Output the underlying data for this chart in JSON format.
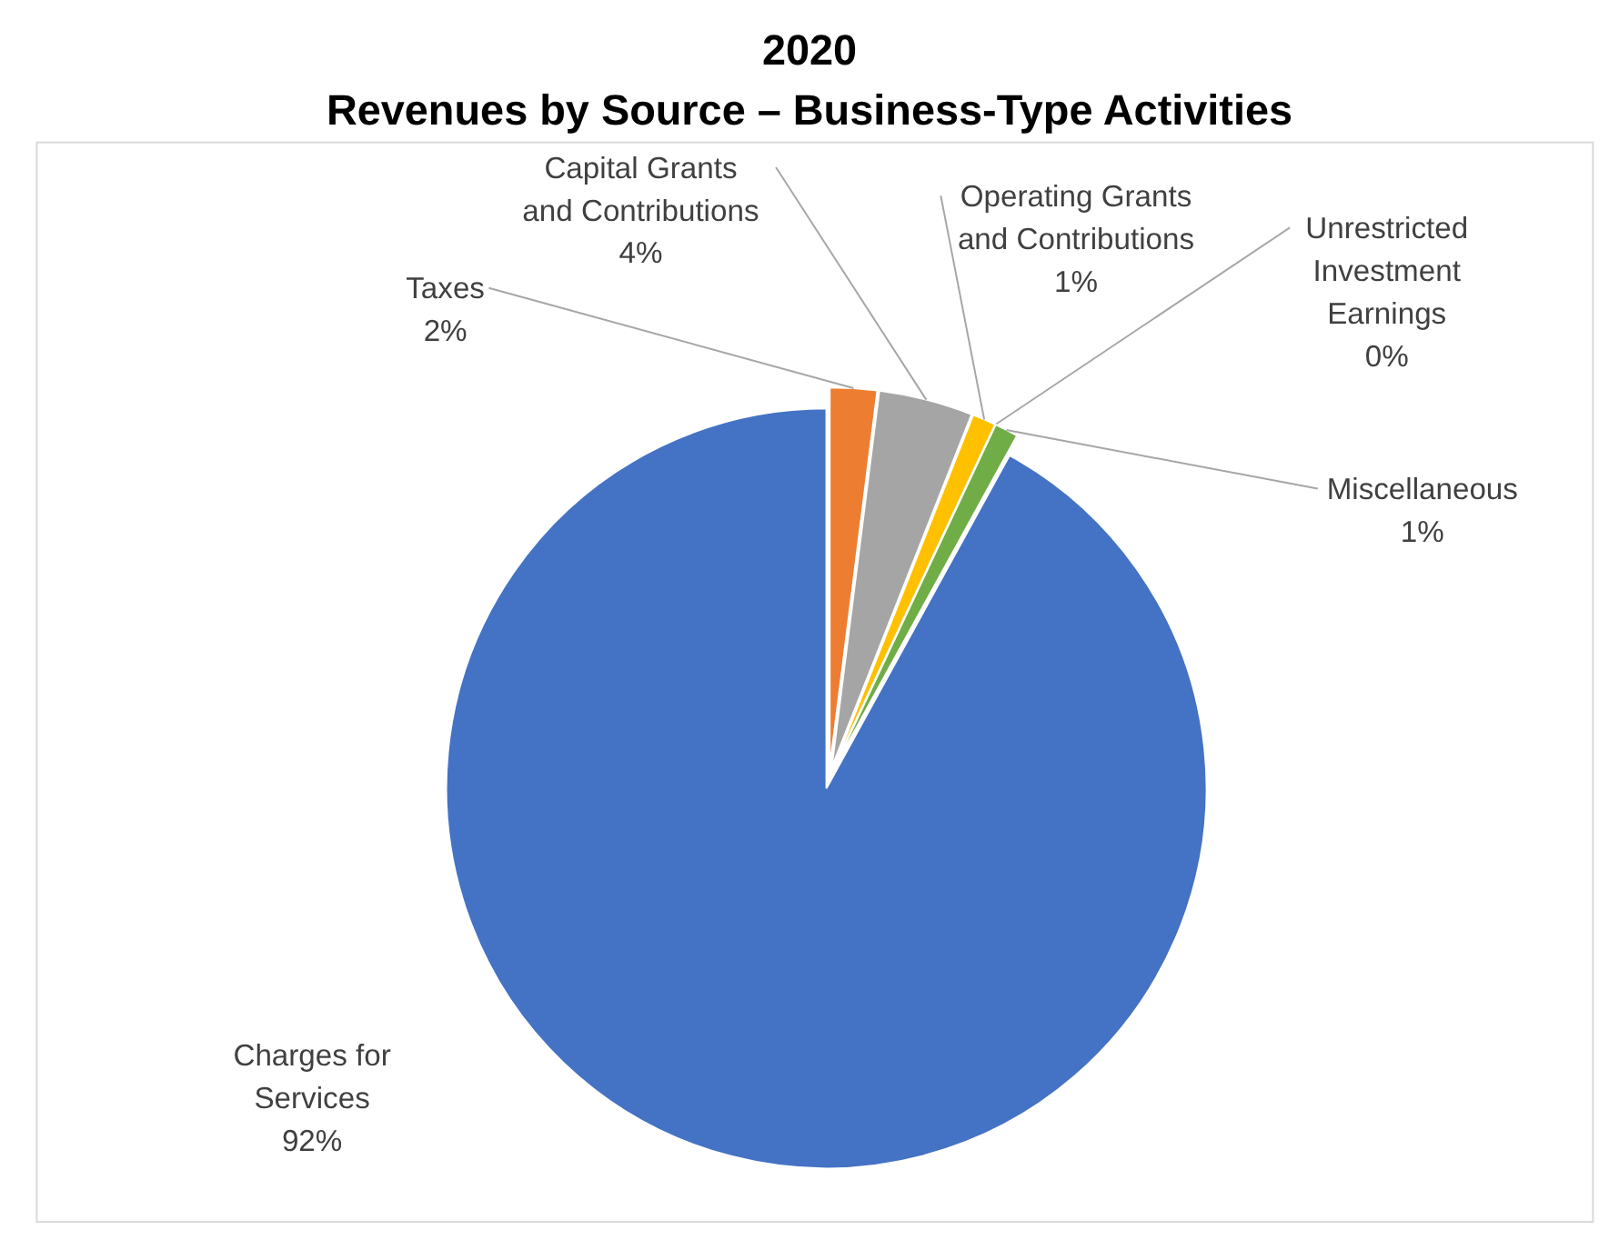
{
  "chart_data": {
    "type": "pie",
    "title": "2020",
    "subtitle": "Revenues by Source – Business-Type Activities",
    "categories": [
      "Taxes",
      "Capital Grants and Contributions",
      "Operating Grants and Contributions",
      "Unrestricted Investment Earnings",
      "Miscellaneous",
      "Charges for Services"
    ],
    "values": [
      2,
      4,
      1,
      0,
      1,
      92
    ],
    "colors": [
      "#ed7d31",
      "#a5a5a5",
      "#ffc000",
      "#5b9bd5",
      "#70ad47",
      "#4472c4"
    ],
    "value_labels": [
      "2%",
      "4%",
      "1%",
      "0%",
      "1%",
      "92%"
    ],
    "legend": false
  }
}
